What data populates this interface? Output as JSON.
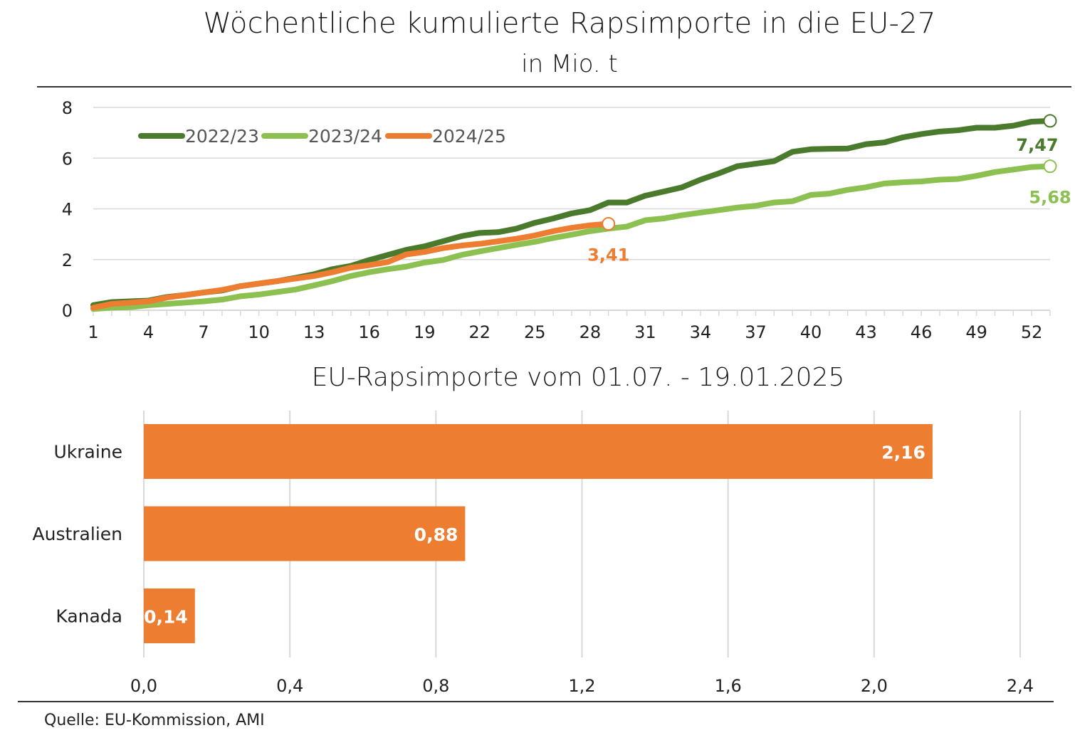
{
  "title": "Wöchentliche kumulierte Rapsimporte in die EU-27",
  "subtitle": "in Mio. t",
  "source": "Quelle: EU-Kommission, AMI",
  "colors": {
    "s2022": "#4a7a2c",
    "s2023": "#8cc152",
    "s2024": "#ed7d31",
    "grid": "#d9d9d9"
  },
  "chart_data": [
    {
      "type": "line",
      "title": "",
      "xlabel": "",
      "ylabel": "",
      "xlim": [
        1,
        53
      ],
      "ylim": [
        0,
        8
      ],
      "xticks": [
        1,
        4,
        7,
        10,
        13,
        16,
        19,
        22,
        25,
        28,
        31,
        34,
        37,
        40,
        43,
        46,
        49,
        52
      ],
      "yticks": [
        0,
        2,
        4,
        6,
        8
      ],
      "grid": true,
      "legend_position": "top-left",
      "series": [
        {
          "name": "2022/23",
          "x_start": 1,
          "values": [
            0.2,
            0.32,
            0.35,
            0.38,
            0.52,
            0.6,
            0.7,
            0.78,
            0.95,
            1.05,
            1.15,
            1.28,
            1.42,
            1.62,
            1.75,
            1.98,
            2.18,
            2.38,
            2.52,
            2.72,
            2.92,
            3.05,
            3.08,
            3.22,
            3.45,
            3.62,
            3.82,
            3.95,
            4.25,
            4.25,
            4.52,
            4.68,
            4.85,
            5.15,
            5.4,
            5.68,
            5.78,
            5.88,
            6.25,
            6.35,
            6.37,
            6.38,
            6.55,
            6.62,
            6.82,
            6.95,
            7.05,
            7.1,
            7.2,
            7.2,
            7.28,
            7.44,
            7.47
          ],
          "end_label": "7,47"
        },
        {
          "name": "2023/24",
          "x_start": 1,
          "values": [
            0.05,
            0.1,
            0.12,
            0.2,
            0.25,
            0.3,
            0.35,
            0.42,
            0.55,
            0.62,
            0.72,
            0.82,
            0.98,
            1.15,
            1.35,
            1.5,
            1.62,
            1.72,
            1.88,
            1.98,
            2.18,
            2.32,
            2.45,
            2.58,
            2.7,
            2.85,
            2.98,
            3.12,
            3.22,
            3.3,
            3.55,
            3.62,
            3.75,
            3.85,
            3.95,
            4.05,
            4.12,
            4.25,
            4.3,
            4.55,
            4.6,
            4.75,
            4.85,
            5.0,
            5.05,
            5.08,
            5.15,
            5.18,
            5.3,
            5.45,
            5.55,
            5.65,
            5.68
          ],
          "end_label": "5,68"
        },
        {
          "name": "2024/25",
          "x_start": 1,
          "values": [
            0.1,
            0.25,
            0.3,
            0.35,
            0.5,
            0.6,
            0.7,
            0.8,
            0.95,
            1.05,
            1.15,
            1.25,
            1.35,
            1.5,
            1.68,
            1.78,
            1.9,
            2.2,
            2.3,
            2.45,
            2.55,
            2.62,
            2.72,
            2.82,
            2.95,
            3.12,
            3.25,
            3.35,
            3.41
          ],
          "end_label": "3,41"
        }
      ]
    },
    {
      "type": "bar",
      "orientation": "horizontal",
      "title": "EU-Rapsimporte vom 01.07. - 19.01.2025",
      "xlabel": "",
      "ylabel": "",
      "xlim": [
        0,
        2.4
      ],
      "xticks": [
        "0,0",
        "0,4",
        "0,8",
        "1,2",
        "1,6",
        "2,0",
        "2,4"
      ],
      "grid": true,
      "categories": [
        "Ukraine",
        "Australien",
        "Kanada"
      ],
      "values": [
        2.16,
        0.88,
        0.14
      ],
      "value_labels": [
        "2,16",
        "0,88",
        "0,14"
      ]
    }
  ]
}
